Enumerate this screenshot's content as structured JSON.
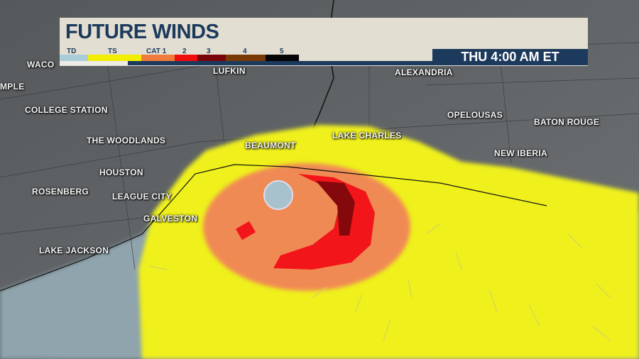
{
  "title": "FUTURE WINDS",
  "timestamp": "THU 4:00 AM ET",
  "legend": [
    {
      "label": "TD",
      "color": "#a9cdd8"
    },
    {
      "label": "TS",
      "color": "#f2ee00"
    },
    {
      "label": "CAT 1",
      "color": "#f07b3c"
    },
    {
      "label": "2",
      "color": "#f00c0c"
    },
    {
      "label": "3",
      "color": "#7a0508"
    },
    {
      "label": "4",
      "color": "#7a3a05"
    },
    {
      "label": "5",
      "color": "#050505"
    }
  ],
  "cities": [
    "WACO",
    "MPLE",
    "COLLEGE STATION",
    "THE WOODLANDS",
    "HOUSTON",
    "ROSENBERG",
    "LEAGUE CITY",
    "GALVESTON",
    "LAKE JACKSON",
    "LUFKIN",
    "ALEXANDRIA",
    "BEAUMONT",
    "LAKE CHARLES",
    "OPELOUSAS",
    "BATON ROUGE",
    "NEW IBERIA"
  ]
}
